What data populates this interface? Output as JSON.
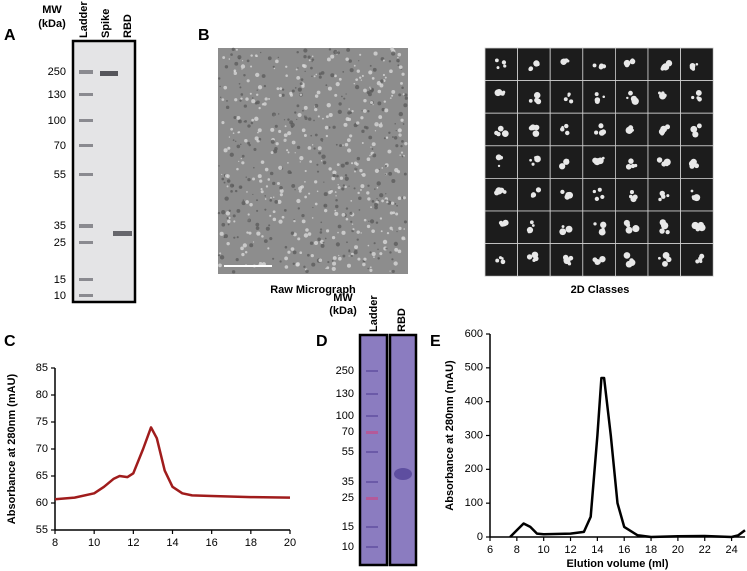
{
  "letters": [
    "A",
    "B",
    "C",
    "D",
    "E"
  ],
  "gel_a": {
    "mw_title": "MW",
    "mw_unit": "(kDa)",
    "lanes": [
      "Ladder",
      "Spike",
      "RBD"
    ],
    "mw": [
      250,
      130,
      100,
      70,
      55,
      35,
      25,
      15,
      10
    ]
  },
  "images": {
    "micrograph_label": "Raw Micrograph",
    "classes_label": "2D Classes"
  },
  "gel_d": {
    "mw_title": "MW",
    "mw_unit": "(kDa)",
    "lanes": [
      "Ladder",
      "RBD"
    ],
    "mw": [
      250,
      130,
      100,
      70,
      55,
      35,
      25,
      15,
      10
    ]
  },
  "chart_data": [
    {
      "type": "line",
      "y_label": "Absorbance at 280nm (mAU)",
      "x": [
        8,
        9,
        10,
        10.5,
        11,
        11.3,
        11.7,
        12,
        12.5,
        12.9,
        13.2,
        13.6,
        14,
        14.5,
        15,
        16,
        18,
        20
      ],
      "values": [
        60.7,
        61,
        61.8,
        63,
        64.5,
        65,
        64.8,
        65.5,
        70,
        74,
        72,
        66,
        63,
        61.8,
        61.4,
        61.3,
        61.1,
        61
      ],
      "color": "#a01c1c",
      "xlim": [
        8,
        20
      ],
      "ylim": [
        55,
        85
      ],
      "xticks": [
        8,
        10,
        12,
        14,
        16,
        18,
        20
      ],
      "yticks": [
        55,
        60,
        65,
        70,
        75,
        80,
        85
      ]
    },
    {
      "type": "line",
      "y_label": "Absorbance at 280nm (mAU)",
      "x_label": "Elution volume (ml)",
      "x": [
        7.5,
        8,
        8.5,
        9,
        9.5,
        10,
        12,
        13,
        13.5,
        14,
        14.3,
        14.5,
        15,
        15.5,
        16,
        17,
        18,
        20,
        22,
        24,
        24.5,
        25
      ],
      "values": [
        0,
        20,
        40,
        30,
        10,
        8,
        10,
        15,
        60,
        300,
        470,
        470,
        300,
        100,
        30,
        5,
        0,
        2,
        3,
        0,
        5,
        20
      ],
      "color": "#000000",
      "xlim": [
        6,
        25
      ],
      "ylim": [
        0,
        600
      ],
      "xticks": [
        6,
        8,
        10,
        12,
        14,
        16,
        18,
        20,
        22,
        24
      ],
      "yticks": [
        0,
        100,
        200,
        300,
        400,
        500,
        600
      ]
    }
  ]
}
